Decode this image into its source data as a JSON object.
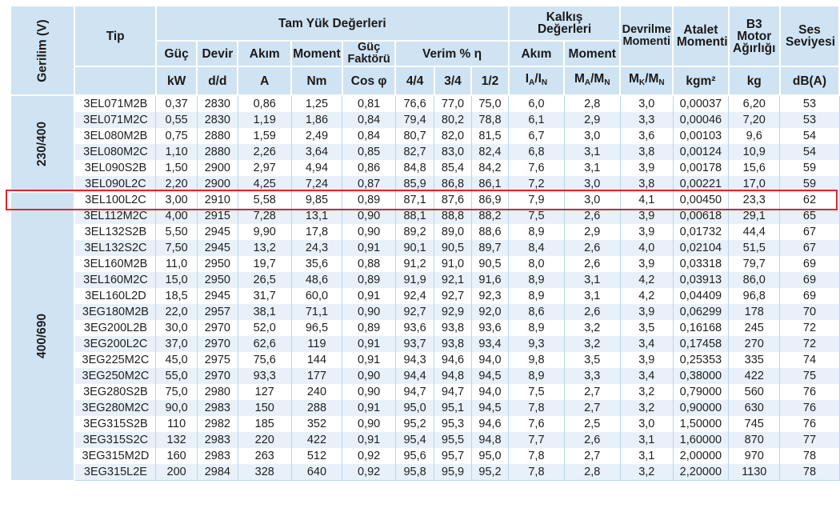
{
  "headers": {
    "voltage": "Gerilim (V)",
    "type": "Tip",
    "full_load": "Tam Yük Değerleri",
    "starting": "Kalkış Değerleri",
    "breakdown": "Devrilme Momenti",
    "inertia": "Atalet Momenti",
    "weight": "B3 Motor Ağırlığı",
    "sound": "Ses Seviyesi",
    "power": "Güç",
    "speed": "Devir",
    "current": "Akım",
    "torque": "Moment",
    "pf": "Güç Faktörü",
    "efficiency": "Verim % η",
    "start_current": "Akım",
    "start_torque": "Moment"
  },
  "units": {
    "power": "kW",
    "speed": "d/d",
    "current": "A",
    "torque": "Nm",
    "pf": "Cos φ",
    "eff_44": "4/4",
    "eff_34": "3/4",
    "eff_12": "1/2",
    "inertia": "kgm²",
    "weight": "kg",
    "sound": "dB(A)"
  },
  "groups": [
    {
      "label": "230/400",
      "rows": 6
    },
    {
      "label": "400/690",
      "rows": 18
    }
  ],
  "highlighted_row": "3EL100L2C",
  "rows": [
    [
      "3EL071M2B",
      "0,37",
      "2830",
      "0,86",
      "1,25",
      "0,81",
      "76,6",
      "77,0",
      "75,0",
      "6,0",
      "2,8",
      "3,0",
      "0,00037",
      "6,20",
      "53"
    ],
    [
      "3EL071M2C",
      "0,55",
      "2830",
      "1,19",
      "1,86",
      "0,84",
      "79,4",
      "80,2",
      "78,8",
      "6,1",
      "2,9",
      "3,3",
      "0,00046",
      "7,20",
      "53"
    ],
    [
      "3EL080M2B",
      "0,75",
      "2880",
      "1,59",
      "2,49",
      "0,84",
      "80,7",
      "82,0",
      "81,5",
      "6,7",
      "3,0",
      "3,6",
      "0,00103",
      "9,6",
      "54"
    ],
    [
      "3EL080M2C",
      "1,10",
      "2880",
      "2,26",
      "3,64",
      "0,85",
      "82,7",
      "83,0",
      "82,4",
      "6,8",
      "3,1",
      "3,8",
      "0,00124",
      "10,9",
      "54"
    ],
    [
      "3EL090S2B",
      "1,50",
      "2900",
      "2,97",
      "4,94",
      "0,86",
      "84,8",
      "85,4",
      "84,2",
      "7,6",
      "3,1",
      "3,9",
      "0,00178",
      "15,6",
      "59"
    ],
    [
      "3EL090L2C",
      "2,20",
      "2900",
      "4,25",
      "7,24",
      "0,87",
      "85,9",
      "86,8",
      "86,1",
      "7,2",
      "3,0",
      "3,8",
      "0,00221",
      "17,0",
      "59"
    ],
    [
      "3EL100L2C",
      "3,00",
      "2910",
      "5,58",
      "9,85",
      "0,89",
      "87,1",
      "87,6",
      "86,9",
      "7,9",
      "3,0",
      "4,1",
      "0,00450",
      "23,3",
      "62"
    ],
    [
      "3EL112M2C",
      "4,00",
      "2915",
      "7,28",
      "13,1",
      "0,90",
      "88,1",
      "88,8",
      "88,2",
      "7,5",
      "2,6",
      "3,9",
      "0,00618",
      "29,1",
      "65"
    ],
    [
      "3EL132S2B",
      "5,50",
      "2945",
      "9,90",
      "17,8",
      "0,90",
      "89,2",
      "89,0",
      "88,6",
      "8,9",
      "2,9",
      "3,9",
      "0,01732",
      "44,4",
      "67"
    ],
    [
      "3EL132S2C",
      "7,50",
      "2945",
      "13,2",
      "24,3",
      "0,91",
      "90,1",
      "90,5",
      "89,7",
      "8,4",
      "2,6",
      "4,0",
      "0,02104",
      "51,5",
      "67"
    ],
    [
      "3EL160M2B",
      "11,0",
      "2950",
      "19,7",
      "35,6",
      "0,88",
      "91,2",
      "91,0",
      "90,5",
      "8,0",
      "2,6",
      "3,9",
      "0,03318",
      "79,7",
      "69"
    ],
    [
      "3EL160M2C",
      "15,0",
      "2950",
      "26,5",
      "48,6",
      "0,89",
      "91,9",
      "92,1",
      "91,6",
      "8,9",
      "3,1",
      "4,2",
      "0,03913",
      "86,0",
      "69"
    ],
    [
      "3EL160L2D",
      "18,5",
      "2945",
      "31,7",
      "60,0",
      "0,91",
      "92,4",
      "92,7",
      "92,3",
      "8,9",
      "3,1",
      "4,2",
      "0,04409",
      "96,8",
      "69"
    ],
    [
      "3EG180M2B",
      "22,0",
      "2957",
      "38,1",
      "71,1",
      "0,90",
      "92,7",
      "92,9",
      "92,0",
      "8,6",
      "2,6",
      "3,9",
      "0,06299",
      "178",
      "70"
    ],
    [
      "3EG200L2B",
      "30,0",
      "2970",
      "52,0",
      "96,5",
      "0,89",
      "93,6",
      "93,8",
      "93,6",
      "8,9",
      "3,2",
      "3,5",
      "0,16168",
      "245",
      "72"
    ],
    [
      "3EG200L2C",
      "37,0",
      "2970",
      "62,6",
      "119",
      "0,91",
      "93,7",
      "93,8",
      "93,4",
      "9,3",
      "3,2",
      "3,4",
      "0,17458",
      "270",
      "72"
    ],
    [
      "3EG225M2C",
      "45,0",
      "2975",
      "75,6",
      "144",
      "0,91",
      "94,3",
      "94,6",
      "94,0",
      "9,8",
      "3,5",
      "3,9",
      "0,25353",
      "335",
      "74"
    ],
    [
      "3EG250M2C",
      "55,0",
      "2970",
      "93,3",
      "177",
      "0,90",
      "94,4",
      "94,8",
      "94,5",
      "8,9",
      "3,3",
      "3,4",
      "0,38000",
      "422",
      "75"
    ],
    [
      "3EG280S2B",
      "75,0",
      "2980",
      "127",
      "240",
      "0,90",
      "94,7",
      "94,7",
      "94,0",
      "7,5",
      "2,7",
      "3,2",
      "0,79000",
      "560",
      "76"
    ],
    [
      "3EG280M2C",
      "90,0",
      "2983",
      "150",
      "288",
      "0,91",
      "95,0",
      "95,1",
      "94,5",
      "7,8",
      "2,7",
      "3,2",
      "0,90000",
      "630",
      "76"
    ],
    [
      "3EG315S2B",
      "110",
      "2982",
      "185",
      "352",
      "0,90",
      "95,2",
      "95,3",
      "94,6",
      "7,6",
      "2,5",
      "3,0",
      "1,50000",
      "745",
      "76"
    ],
    [
      "3EG315S2C",
      "132",
      "2983",
      "220",
      "422",
      "0,91",
      "95,4",
      "95,5",
      "94,8",
      "7,7",
      "2,6",
      "3,1",
      "1,60000",
      "870",
      "77"
    ],
    [
      "3EG315M2D",
      "160",
      "2983",
      "263",
      "512",
      "0,92",
      "95,6",
      "95,7",
      "95,0",
      "7,8",
      "2,7",
      "3,1",
      "2,00000",
      "970",
      "78"
    ],
    [
      "3EG315L2E",
      "200",
      "2984",
      "328",
      "640",
      "0,92",
      "95,8",
      "95,9",
      "95,2",
      "7,8",
      "2,8",
      "3,2",
      "2,20000",
      "1130",
      "78"
    ]
  ]
}
